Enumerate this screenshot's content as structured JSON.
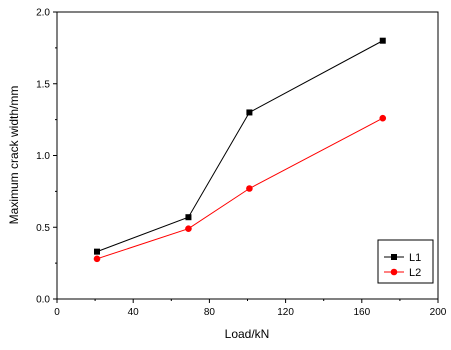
{
  "chart_data": {
    "type": "line",
    "xlabel": "Load/kN",
    "ylabel": "Maximum crack width/mm",
    "xlim": [
      0,
      200
    ],
    "ylim": [
      0,
      2.0
    ],
    "x_ticks": [
      "0",
      "40",
      "80",
      "120",
      "160",
      "200"
    ],
    "y_ticks": [
      "0.0",
      "0.5",
      "1.0",
      "1.5",
      "2.0"
    ],
    "grid": false,
    "legend_position": "bottom-right",
    "series": [
      {
        "name": "L1",
        "color": "#000000",
        "marker": "square",
        "x": [
          21,
          69,
          101,
          171
        ],
        "y": [
          0.33,
          0.57,
          1.3,
          1.8
        ]
      },
      {
        "name": "L2",
        "color": "#ff0000",
        "marker": "circle",
        "x": [
          21,
          69,
          101,
          171
        ],
        "y": [
          0.28,
          0.49,
          0.77,
          1.26
        ]
      }
    ]
  }
}
